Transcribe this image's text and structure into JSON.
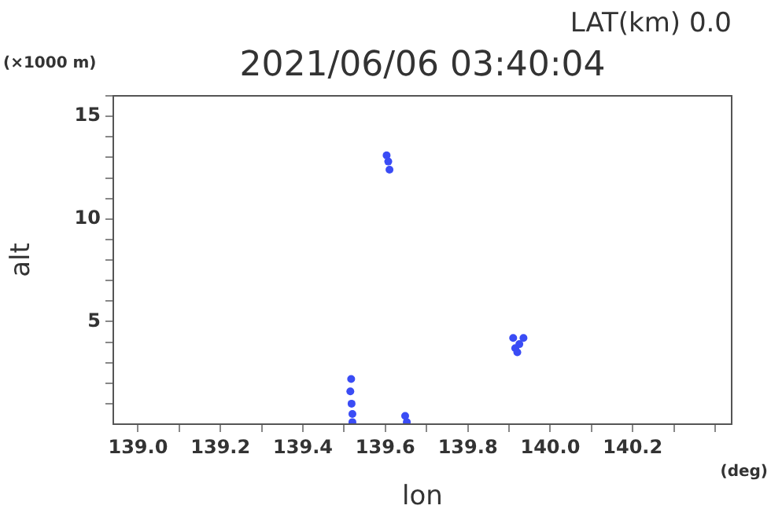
{
  "chart_data": {
    "type": "scatter",
    "title": "2021/06/06 03:40:04",
    "subtitle": "LAT(km) 0.0",
    "xlabel": "lon",
    "ylabel": "alt",
    "annotations": [
      "(×1000 m)",
      "(deg)"
    ],
    "x": [
      139.603,
      139.607,
      139.61,
      139.517,
      139.515,
      139.518,
      139.52,
      139.52,
      139.648,
      139.652,
      139.91,
      139.915,
      139.92,
      139.935,
      139.925
    ],
    "values": [
      13.1,
      12.8,
      12.4,
      2.2,
      1.6,
      1.0,
      0.5,
      0.1,
      0.4,
      0.1,
      4.2,
      3.7,
      3.5,
      4.2,
      3.9
    ],
    "color": "#3a4cf5",
    "marker": "circle",
    "xlim": [
      138.94,
      140.44
    ],
    "ylim": [
      0,
      16
    ],
    "xticks": [
      {
        "value": 139.0,
        "label": "139.0"
      },
      {
        "value": 139.1,
        "label": null
      },
      {
        "value": 139.2,
        "label": "139.2"
      },
      {
        "value": 139.3,
        "label": null
      },
      {
        "value": 139.4,
        "label": "139.4"
      },
      {
        "value": 139.5,
        "label": null
      },
      {
        "value": 139.6,
        "label": "139.6"
      },
      {
        "value": 139.7,
        "label": null
      },
      {
        "value": 139.8,
        "label": "139.8"
      },
      {
        "value": 139.9,
        "label": null
      },
      {
        "value": 140.0,
        "label": "140.0"
      },
      {
        "value": 140.1,
        "label": null
      },
      {
        "value": 140.2,
        "label": "140.2"
      },
      {
        "value": 140.3,
        "label": null
      },
      {
        "value": 140.4,
        "label": null
      }
    ],
    "yticks": [
      {
        "value": 1,
        "label": null
      },
      {
        "value": 2,
        "label": null
      },
      {
        "value": 3,
        "label": null
      },
      {
        "value": 4,
        "label": null
      },
      5,
      {
        "value": 6,
        "label": null
      },
      {
        "value": 7,
        "label": null
      },
      {
        "value": 8,
        "label": null
      },
      {
        "value": 9,
        "label": null
      },
      10,
      {
        "value": 11,
        "label": null
      },
      {
        "value": 12,
        "label": null
      },
      {
        "value": 13,
        "label": null
      },
      {
        "value": 14,
        "label": null
      },
      15,
      {
        "value": 16,
        "label": null
      }
    ],
    "grid": false,
    "legend": false
  }
}
